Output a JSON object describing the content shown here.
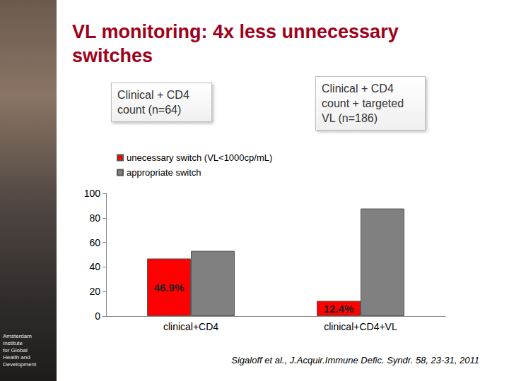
{
  "title": "VL monitoring: 4x less unnecessary switches",
  "group_labels": [
    "Clinical + CD4 count (n=64)",
    "Clinical + CD4 count + targeted VL (n=186)"
  ],
  "citation": "Sigaloff et al., J.Acquir.Immune Defic. Syndr. 58, 23-31, 2011",
  "logo": [
    "Amsterdam",
    "Institute",
    "for Global",
    "Health and",
    "Development"
  ],
  "chart_data": {
    "type": "bar",
    "categories": [
      "clinical+CD4",
      "clinical+CD4+VL"
    ],
    "series": [
      {
        "name": "unecessary switch (VL<1000cp/mL)",
        "color": "#ff0000",
        "values": [
          46.9,
          12.4
        ],
        "value_labels": [
          "46.9%",
          "12.4%"
        ],
        "data_labels": true
      },
      {
        "name": "appropriate switch",
        "color": "#808080",
        "values": [
          53.1,
          87.6
        ]
      }
    ],
    "ylim": [
      0,
      100
    ],
    "yticks": [
      0,
      20,
      40,
      60,
      80,
      100
    ],
    "grid": false,
    "legend": "top-left"
  }
}
